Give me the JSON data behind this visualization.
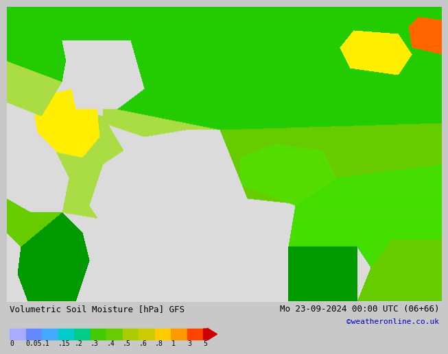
{
  "title_left": "Volumetric Soil Moisture [hPa] GFS",
  "title_right": "Mo 23-09-2024 00:00 UTC (06+66)",
  "credit": "©weatheronline.co.uk",
  "colorbar_labels": [
    "0",
    "0.05",
    ".1",
    ".15",
    ".2",
    ".3",
    ".4",
    ".5",
    ".6",
    ".8",
    "1",
    "3",
    "5"
  ],
  "colorbar_colors": [
    "#aaaaff",
    "#6688ff",
    "#44aaff",
    "#00cccc",
    "#00cc88",
    "#44cc00",
    "#66cc00",
    "#aacc00",
    "#cccc00",
    "#ffcc00",
    "#ff9900",
    "#ff4400",
    "#cc0000"
  ],
  "background_color": "#c8c8c8",
  "sea_color": "#dcdcdc",
  "land_base_color": "#d0d0d0",
  "font_size_title": 9,
  "font_size_credit": 8,
  "font_size_cb_label": 7
}
